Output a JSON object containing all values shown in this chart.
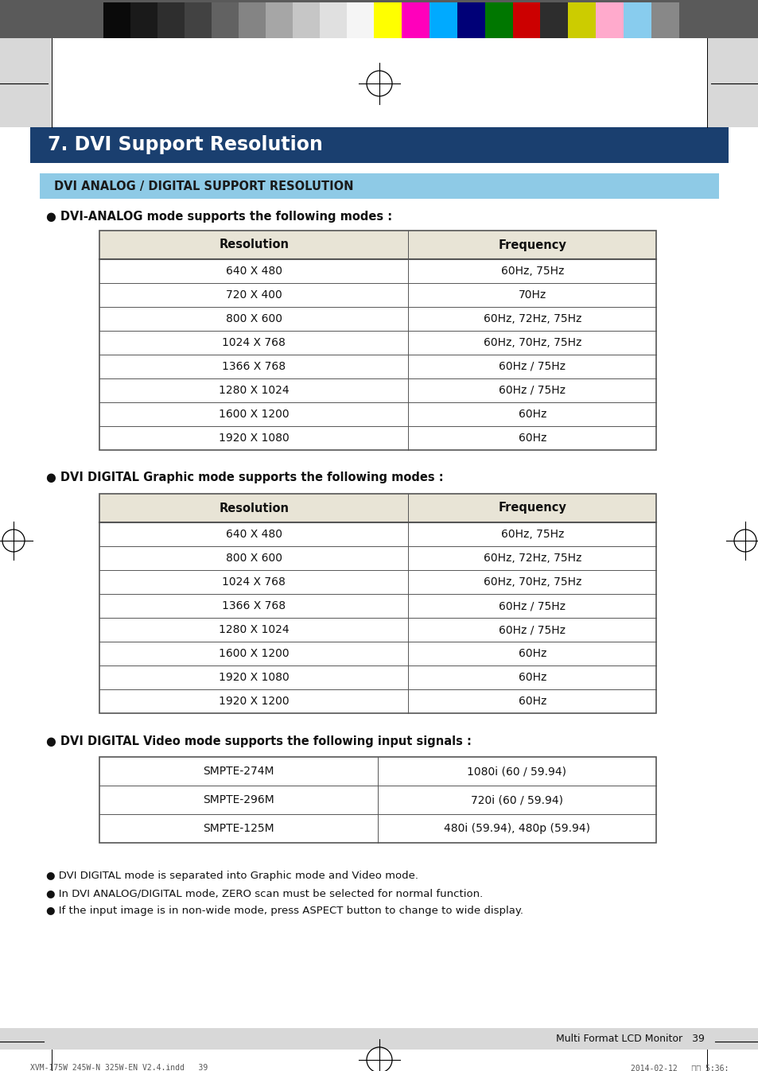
{
  "title": "7. DVI Support Resolution",
  "title_bg": "#1a3f6f",
  "title_color": "#ffffff",
  "subtitle": "DVI ANALOG / DIGITAL SUPPORT RESOLUTION",
  "subtitle_bg": "#8ecae6",
  "subtitle_color": "#1a1a1a",
  "section1_label": "● DVI-ANALOG mode supports the following modes :",
  "table1_headers": [
    "Resolution",
    "Frequency"
  ],
  "table1_rows": [
    [
      "640 X 480",
      "60Hz, 75Hz"
    ],
    [
      "720 X 400",
      "70Hz"
    ],
    [
      "800 X 600",
      "60Hz, 72Hz, 75Hz"
    ],
    [
      "1024 X 768",
      "60Hz, 70Hz, 75Hz"
    ],
    [
      "1366 X 768",
      "60Hz / 75Hz"
    ],
    [
      "1280 X 1024",
      "60Hz / 75Hz"
    ],
    [
      "1600 X 1200",
      "60Hz"
    ],
    [
      "1920 X 1080",
      "60Hz"
    ]
  ],
  "section2_label": "● DVI DIGITAL Graphic mode supports the following modes :",
  "table2_headers": [
    "Resolution",
    "Frequency"
  ],
  "table2_rows": [
    [
      "640 X 480",
      "60Hz, 75Hz"
    ],
    [
      "800 X 600",
      "60Hz, 72Hz, 75Hz"
    ],
    [
      "1024 X 768",
      "60Hz, 70Hz, 75Hz"
    ],
    [
      "1366 X 768",
      "60Hz / 75Hz"
    ],
    [
      "1280 X 1024",
      "60Hz / 75Hz"
    ],
    [
      "1600 X 1200",
      "60Hz"
    ],
    [
      "1920 X 1080",
      "60Hz"
    ],
    [
      "1920 X 1200",
      "60Hz"
    ]
  ],
  "section3_label": "● DVI DIGITAL Video mode supports the following input signals :",
  "table3_rows": [
    [
      "SMPTE-274M",
      "1080i (60 / 59.94)"
    ],
    [
      "SMPTE-296M",
      "720i (60 / 59.94)"
    ],
    [
      "SMPTE-125M",
      "480i (59.94), 480p (59.94)"
    ]
  ],
  "footer_notes": [
    "● DVI DIGITAL mode is separated into Graphic mode and Video mode.",
    "● In DVI ANALOG/DIGITAL mode, ZERO scan must be selected for normal function.",
    "● If the input image is in non-wide mode, press ASPECT button to change to wide display."
  ],
  "page_number": "Multi Format LCD Monitor   39",
  "table_header_bg": "#e8e4d6",
  "table_row_bg": "#ffffff",
  "table_border": "#555555",
  "colorbar_gray": [
    "#0a0a0a",
    "#1a1a1a",
    "#2e2e2e",
    "#424242",
    "#626262",
    "#848484",
    "#a6a6a6",
    "#c6c6c6",
    "#e0e0e0",
    "#f5f5f5"
  ],
  "colorbar_color": [
    "#ffff00",
    "#ff00bb",
    "#00aaff",
    "#000077",
    "#007700",
    "#cc0000",
    "#2d2d2d",
    "#cccc00",
    "#ffaacc",
    "#88ccee",
    "#888888"
  ],
  "colorbar_border": "#5a5a5a",
  "bg_color": "#ffffff",
  "gray_band_color": "#d8d8d8",
  "footer_bar_color": "#d8d8d8",
  "page_bg_color": "#f2f2f2"
}
